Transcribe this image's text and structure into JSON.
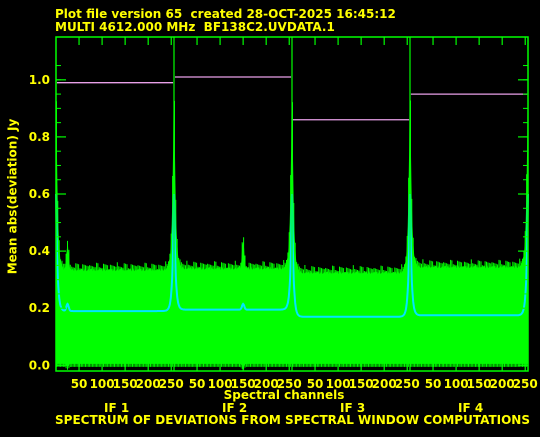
{
  "header": {
    "line1": "Plot file version 65  created 28-OCT-2025 16:45:12",
    "line2": "MULTI 4612.000 MHz  BF138C2.UVDATA.1"
  },
  "footer": {
    "caption": "SPECTRUM OF DEVIATIONS FROM SPECTRAL WINDOW COMPUTATIONS"
  },
  "colors": {
    "background": "#000000",
    "text": "#ffff00",
    "band": "#00ff00",
    "mean": "#00e6ff",
    "rms_line": "#e8a0e8",
    "frame": "#00ff00"
  },
  "chart_data": {
    "type": "line",
    "title": "",
    "xlabel": "Spectral channels",
    "ylabel": "Mean abs(deviation) Jy",
    "ylim": [
      -0.02,
      1.15
    ],
    "yticks": [
      0.0,
      0.2,
      0.4,
      0.6,
      0.8,
      1.0
    ],
    "ytick_labels": [
      "0.0",
      "0.2",
      "0.4",
      "0.6",
      "0.8",
      "1.0"
    ],
    "xticks_per_panel": [
      50,
      100,
      150,
      200,
      250
    ],
    "xtick_labels": [
      "50",
      "100",
      "150",
      "200",
      "250"
    ],
    "channels_per_panel": 256,
    "grid": false,
    "panels": [
      {
        "name": "IF 1",
        "flat_line": 0.99,
        "band_top": 0.34,
        "band_bottom": 0.005,
        "mean_level": 0.19,
        "bump_channel": 25,
        "bump_top": 0.43,
        "bump_mean": 0.215
      },
      {
        "name": "IF 2",
        "flat_line": 1.01,
        "band_top": 0.345,
        "band_bottom": 0.005,
        "mean_level": 0.195,
        "bump_channel": 150,
        "bump_top": 0.44,
        "bump_mean": 0.215
      },
      {
        "name": "IF 3",
        "flat_line": 0.86,
        "band_top": 0.33,
        "band_bottom": 0.005,
        "mean_level": 0.17,
        "bump_channel": null,
        "bump_top": null,
        "bump_mean": null
      },
      {
        "name": "IF 4",
        "flat_line": 0.95,
        "band_top": 0.35,
        "band_bottom": 0.005,
        "mean_level": 0.175,
        "bump_channel": null,
        "bump_top": null,
        "bump_mean": null
      }
    ]
  }
}
